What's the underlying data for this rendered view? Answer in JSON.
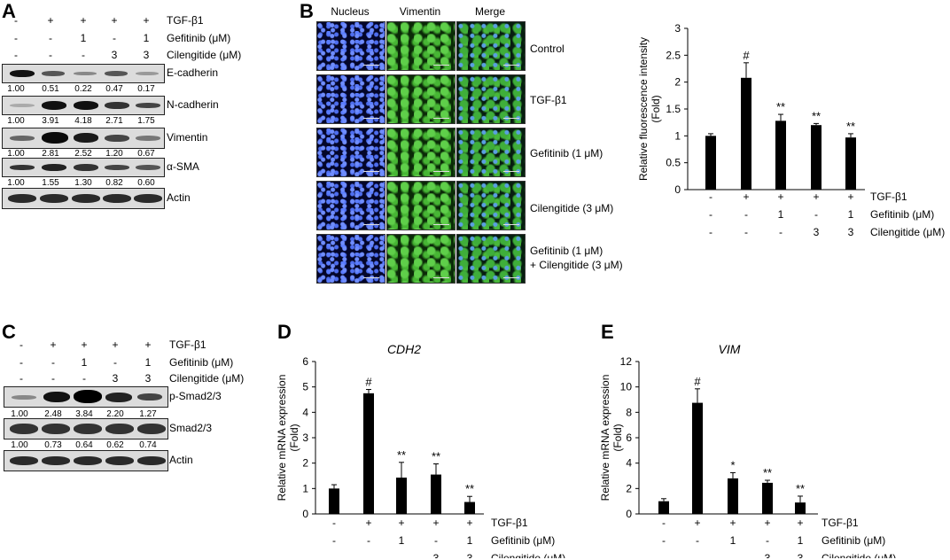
{
  "figure": {
    "panel_labels": [
      "A",
      "B",
      "C",
      "D",
      "E"
    ],
    "treat_labels": {
      "tgf": "TGF-β1",
      "gef": "Gefitinib (μM)",
      "cil": "Cilengitide (μM)"
    },
    "treat_tgf": [
      "-",
      "+",
      "+",
      "+",
      "+"
    ],
    "treat_gef": [
      "-",
      "-",
      "1",
      "-",
      "1"
    ],
    "treat_cil": [
      "-",
      "-",
      "-",
      "3",
      "3"
    ]
  },
  "panelA": {
    "blots": [
      {
        "name": "E-cadherin",
        "values": [
          "1.00",
          "0.51",
          "0.22",
          "0.47",
          "0.17"
        ]
      },
      {
        "name": "N-cadherin",
        "values": [
          "1.00",
          "3.91",
          "4.18",
          "2.71",
          "1.75"
        ]
      },
      {
        "name": "Vimentin",
        "values": [
          "1.00",
          "2.81",
          "2.52",
          "1.20",
          "0.67"
        ]
      },
      {
        "name": "α-SMA",
        "values": [
          "1.00",
          "1.55",
          "1.30",
          "0.82",
          "0.60"
        ]
      },
      {
        "name": "Actin",
        "values": []
      }
    ]
  },
  "panelB": {
    "columns": [
      "Nucleus",
      "Vimentin",
      "Merge"
    ],
    "rows": [
      "Control",
      "TGF-β1",
      "Gefitinib (1 μM)",
      "Cilengitide (3 μM)",
      "Gefitinib (1 μM)",
      "+ Cilengitide (3 μM)"
    ]
  },
  "panelC": {
    "blots": [
      {
        "name": "p-Smad2/3",
        "values": [
          "1.00",
          "2.48",
          "3.84",
          "2.20",
          "1.27"
        ]
      },
      {
        "name": "Smad2/3",
        "values": [
          "1.00",
          "0.73",
          "0.64",
          "0.62",
          "0.74"
        ]
      },
      {
        "name": "Actin",
        "values": []
      }
    ]
  },
  "chart_data": [
    {
      "panel": "B",
      "type": "bar",
      "ylabel": "Relative fluorescence intensity (Fold)",
      "ylim": [
        0,
        3
      ],
      "yticks": [
        "0",
        "0.5",
        "1",
        "1.5",
        "2",
        "2.5",
        "3"
      ],
      "values": [
        1.0,
        2.08,
        1.28,
        1.2,
        0.97
      ],
      "errors": [
        0.04,
        0.28,
        0.12,
        0.03,
        0.07
      ],
      "annotations": [
        "",
        "#",
        "**",
        "**",
        "**"
      ]
    },
    {
      "panel": "D",
      "type": "bar",
      "title": "CDH2",
      "ylabel": "Relative mRNA expression (Fold)",
      "ylim": [
        0,
        6
      ],
      "yticks": [
        "0",
        "1",
        "2",
        "3",
        "4",
        "5",
        "6"
      ],
      "values": [
        1.0,
        4.75,
        1.43,
        1.55,
        0.47
      ],
      "errors": [
        0.15,
        0.15,
        0.6,
        0.42,
        0.22
      ],
      "annotations": [
        "",
        "#",
        "**",
        "**",
        "**"
      ]
    },
    {
      "panel": "E",
      "type": "bar",
      "title": "VIM",
      "ylabel": "Relative mRNA expression (Fold)",
      "ylim": [
        0,
        12
      ],
      "yticks": [
        "0",
        "2",
        "4",
        "6",
        "8",
        "10",
        "12"
      ],
      "values": [
        1.0,
        8.75,
        2.8,
        2.45,
        0.9
      ],
      "errors": [
        0.2,
        1.1,
        0.45,
        0.2,
        0.5
      ],
      "annotations": [
        "",
        "#",
        "*",
        "**",
        "**"
      ]
    }
  ]
}
